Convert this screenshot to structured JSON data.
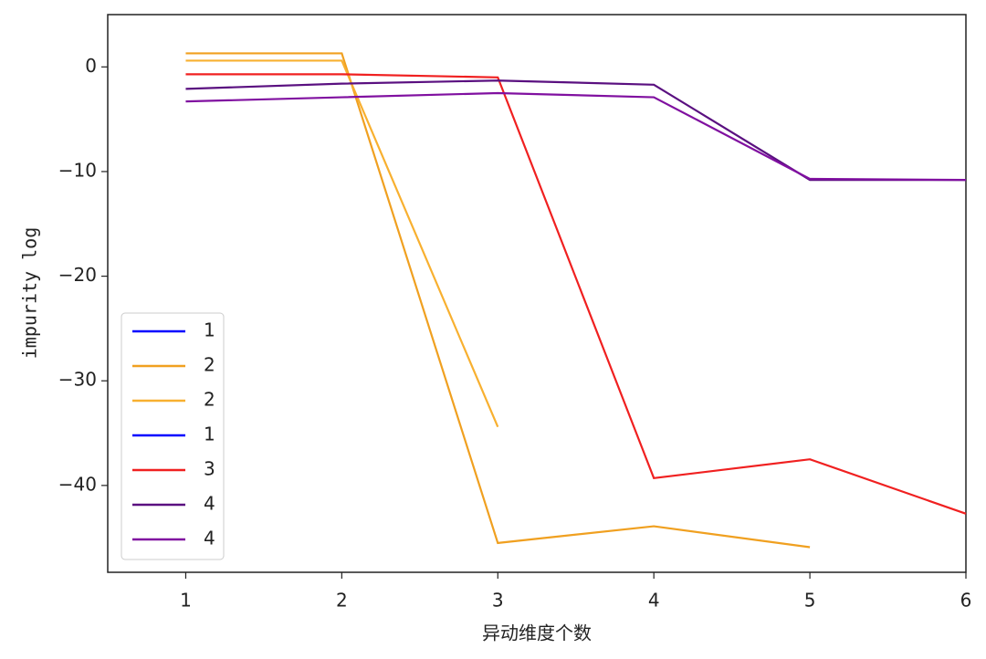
{
  "chart_data": {
    "type": "line",
    "x_label": "异动维度个数",
    "y_label": "impurity log",
    "x": [
      1,
      2,
      3,
      4,
      5,
      6
    ],
    "xlim": [
      0.5,
      6
    ],
    "xticks": [
      1,
      2,
      3,
      4,
      5,
      6
    ],
    "ylim": [
      -48.3,
      5
    ],
    "yticks": [
      {
        "value": 0,
        "label": "0"
      },
      {
        "value": -10,
        "label": "−10"
      },
      {
        "value": -20,
        "label": "−20"
      },
      {
        "value": -30,
        "label": "−30"
      },
      {
        "value": -40,
        "label": "−40"
      }
    ],
    "legend": "lower left",
    "series": [
      {
        "name": "1",
        "color": "#0000ff",
        "values": [
          null,
          null,
          null,
          null,
          null,
          null
        ]
      },
      {
        "name": "2",
        "color": "#f0a020",
        "values": [
          1.3,
          1.3,
          -45.5,
          -43.9,
          -45.9,
          null
        ]
      },
      {
        "name": "2",
        "color": "#f8b030",
        "values": [
          0.6,
          0.6,
          -34.4,
          null,
          null,
          null
        ]
      },
      {
        "name": "1",
        "color": "#0000ff",
        "values": [
          null,
          null,
          null,
          null,
          null,
          null
        ]
      },
      {
        "name": "3",
        "color": "#f02020",
        "values": [
          -0.7,
          -0.7,
          -1.0,
          -39.3,
          -37.5,
          -42.7
        ]
      },
      {
        "name": "4",
        "color": "#5a1080",
        "values": [
          -2.1,
          -1.6,
          -1.3,
          -1.7,
          -10.8,
          -10.8
        ]
      },
      {
        "name": "4",
        "color": "#8010a0",
        "values": [
          -3.3,
          -2.9,
          -2.5,
          -2.9,
          -10.7,
          -10.8
        ]
      }
    ]
  }
}
